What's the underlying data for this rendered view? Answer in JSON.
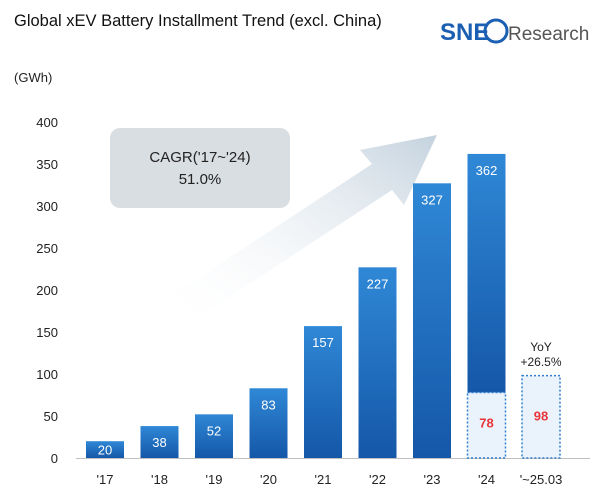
{
  "header": {
    "title": "Global xEV Battery Installment Trend (excl. China)",
    "logo_text": "SNE",
    "logo_suffix": "Research"
  },
  "annotation": {
    "cagr_label": "CAGR('17~'24)",
    "cagr_value": "51.0%",
    "yoy_label": "YoY",
    "yoy_value": "+26.5%"
  },
  "colors": {
    "bar_top": "#2f88d6",
    "bar_bottom": "#1557a8",
    "highlight_fill": "#eaf2fb",
    "highlight_border": "#2f7fd0",
    "highlight_text": "#e8353b",
    "arrow": "#c4d2de",
    "cagr_box": "#d9dee3"
  },
  "chart_data": {
    "type": "bar",
    "title": "Global xEV Battery Installment Trend (excl. China)",
    "ylabel": "(GWh)",
    "xlabel": "",
    "ylim": [
      0,
      400
    ],
    "yticks": [
      0,
      50,
      100,
      150,
      200,
      250,
      300,
      350,
      400
    ],
    "grid": false,
    "categories": [
      "'17",
      "'18",
      "'19",
      "'20",
      "'21",
      "'22",
      "'23",
      "'24",
      "'~25.03"
    ],
    "values": [
      20,
      38,
      52,
      83,
      157,
      227,
      327,
      362,
      98
    ],
    "labels": [
      "20",
      "38",
      "52",
      "83",
      "157",
      "227",
      "327",
      "362",
      "98"
    ],
    "highlight_segment": {
      "category": "'24",
      "value": 78,
      "label": "78"
    },
    "highlight_bar": {
      "category": "'~25.03",
      "value": 98
    }
  }
}
